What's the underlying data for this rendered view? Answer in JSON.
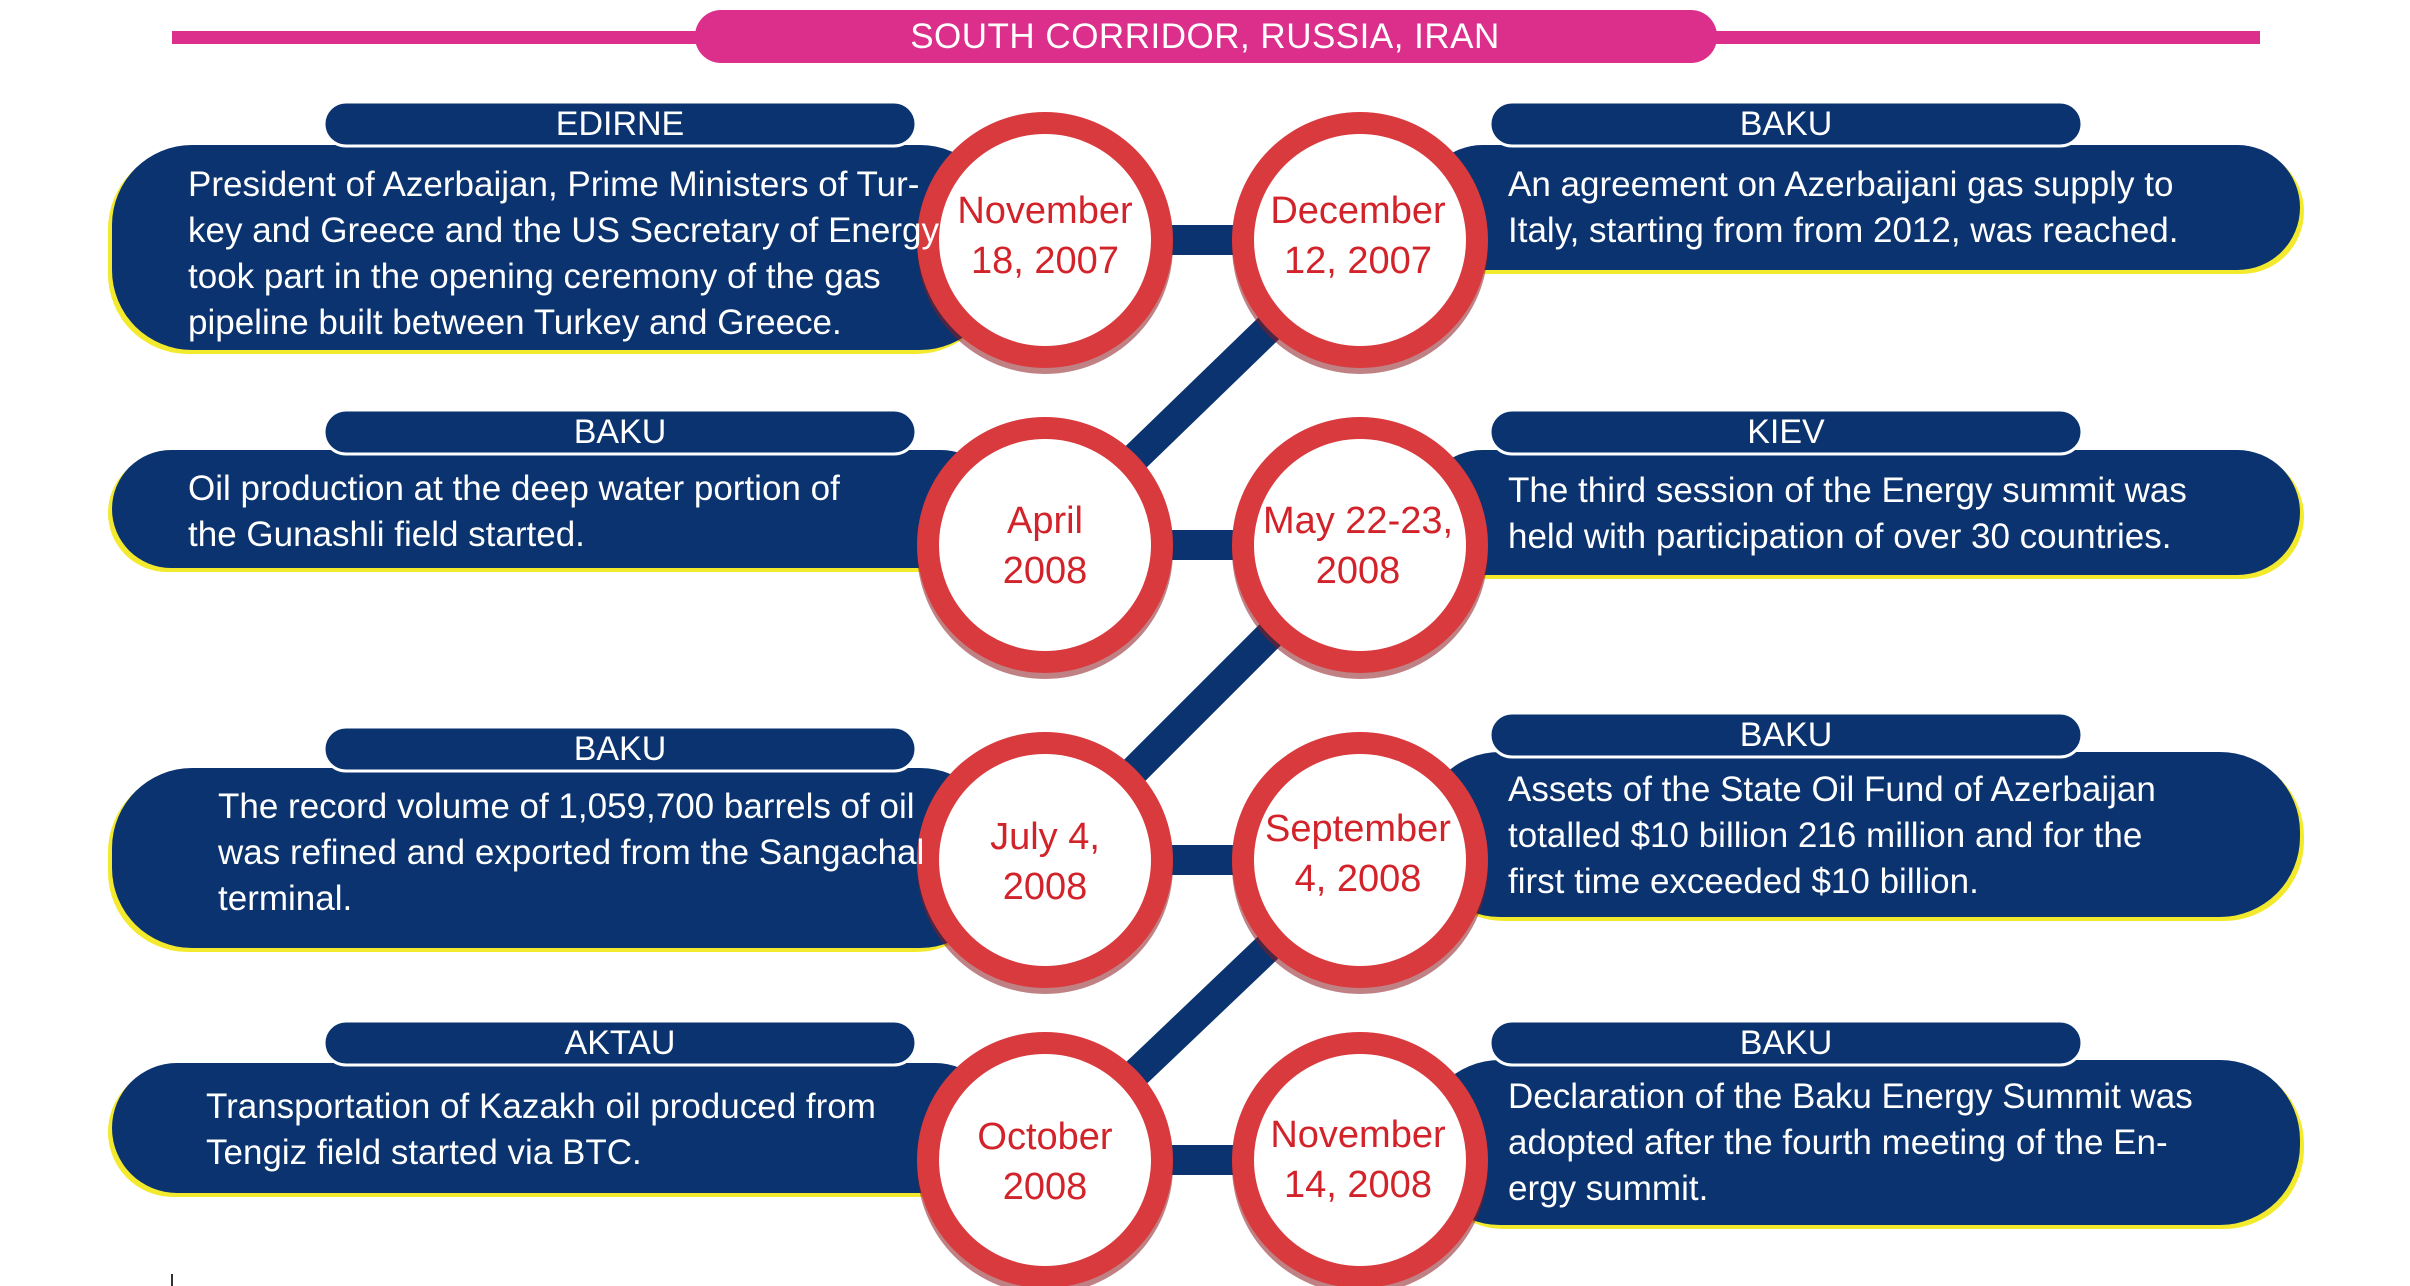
{
  "header": {
    "title": "SOUTH CORRIDOR, RUSSIA, IRAN",
    "accent": "#dc2f8b"
  },
  "colors": {
    "navy": "#0a336f",
    "red": "#d83a3e",
    "yellow": "#f3ea2e"
  },
  "events": [
    {
      "city": "EDIRNE",
      "date": [
        "November",
        "18, 2007"
      ],
      "text": [
        "President of Azerbaijan, Prime Ministers of Tur-",
        "key and Greece and the US Secretary of Energy",
        "took part in the opening ceremony of the gas",
        "pipeline built between Turkey and Greece."
      ]
    },
    {
      "city": "BAKU",
      "date": [
        "December",
        "12, 2007"
      ],
      "text": [
        "An agreement on Azerbaijani gas supply to",
        "Italy, starting from from 2012, was reached."
      ]
    },
    {
      "city": "BAKU",
      "date": [
        "April",
        "2008"
      ],
      "text": [
        "Oil production at the deep water portion of",
        "the Gunashli field started."
      ]
    },
    {
      "city": "KIEV",
      "date": [
        "May 22-23,",
        "2008"
      ],
      "text": [
        "The third session of the Energy summit was",
        "held with participation of over 30 countries."
      ]
    },
    {
      "city": "BAKU",
      "date": [
        "July 4,",
        "2008"
      ],
      "text": [
        "The record volume of 1,059,700 barrels of oil",
        "was refined and exported from the Sangachal",
        "terminal."
      ]
    },
    {
      "city": "BAKU",
      "date": [
        "September",
        "4, 2008"
      ],
      "text": [
        "Assets of the State Oil Fund of Azerbaijan",
        "totalled $10 billion 216 million and for the",
        "first time exceeded $10 billion."
      ]
    },
    {
      "city": "AKTAU",
      "date": [
        "October",
        "2008"
      ],
      "text": [
        "Transportation of Kazakh oil produced from",
        "Tengiz field started via BTC."
      ]
    },
    {
      "city": "BAKU",
      "date": [
        "November",
        "14, 2008"
      ],
      "text": [
        "Declaration of the Baku Energy Summit was",
        "adopted after the fourth meeting of the En-",
        "ergy summit."
      ]
    }
  ]
}
